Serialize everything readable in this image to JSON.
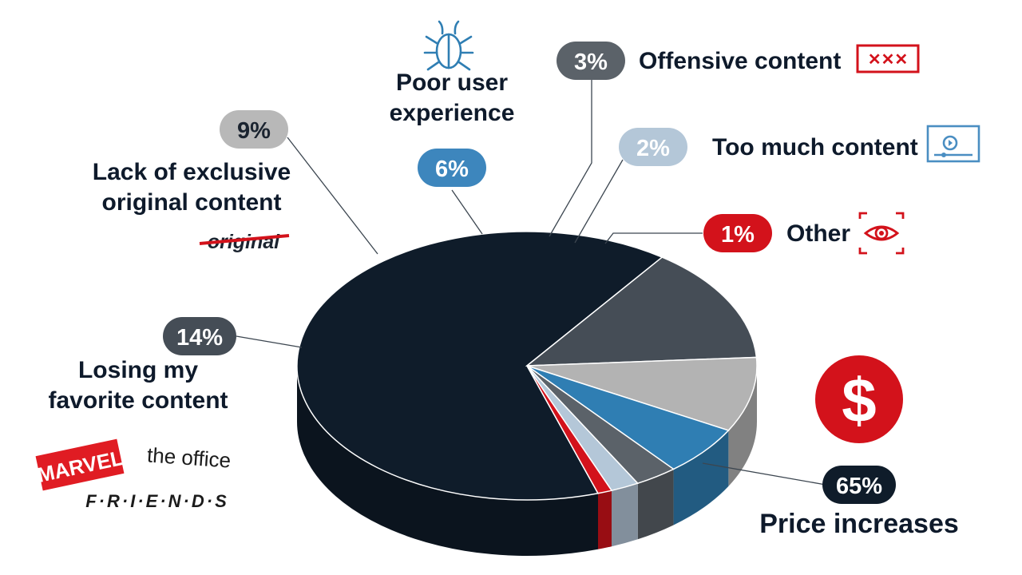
{
  "chart_data": {
    "type": "pie",
    "slices": [
      {
        "label": "Price increases",
        "value": 65,
        "value_label": "65%",
        "color": "#0f1c2a",
        "icon": "dollar-sign-icon"
      },
      {
        "label": "Losing my favorite content",
        "value": 14,
        "value_label": "14%",
        "color": "#454d56",
        "icon": "show-logos"
      },
      {
        "label": "Lack of exclusive original content",
        "value": 9,
        "value_label": "9%",
        "color": "#b3b3b3",
        "icon": "original-strikethrough-icon"
      },
      {
        "label": "Poor user experience",
        "value": 6,
        "value_label": "6%",
        "color": "#2f7eb3",
        "icon": "bug-icon"
      },
      {
        "label": "Offensive content",
        "value": 3,
        "value_label": "3%",
        "color": "#5b6269",
        "icon": "xxx-icon"
      },
      {
        "label": "Too much content",
        "value": 2,
        "value_label": "2%",
        "color": "#b4c7d8",
        "icon": "video-player-icon"
      },
      {
        "label": "Other",
        "value": 1,
        "value_label": "1%",
        "color": "#d3121b",
        "icon": "eye-icon"
      }
    ],
    "decorations": {
      "original_word": "original",
      "logo_marvel": "MARVEL",
      "logo_office": "the office",
      "logo_friends": "F·R·I·E·N·D·S"
    },
    "colors": {
      "accent_red": "#d3121b",
      "accent_blue": "#2f7eb3",
      "text": "#0e1a2b"
    }
  }
}
